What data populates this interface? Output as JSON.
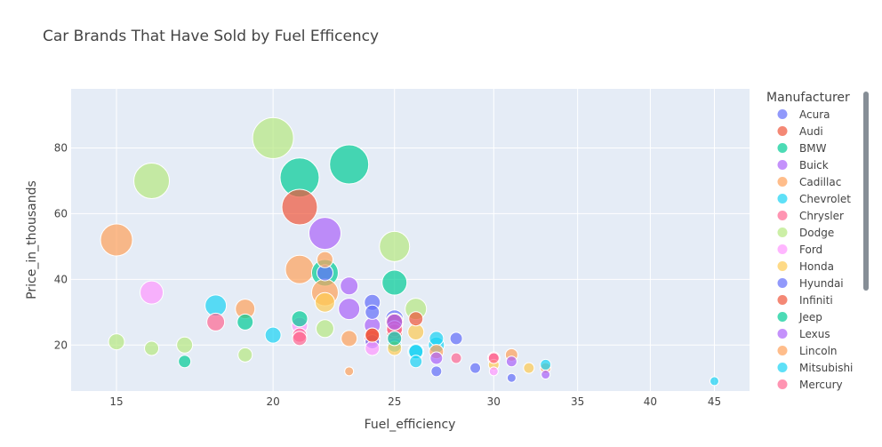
{
  "chart_data": {
    "type": "scatter",
    "title": "Car Brands That Have Sold by Fuel Efficency",
    "xlabel": "Fuel_efficiency",
    "ylabel": "Price_in_thousands",
    "x_scale": "log",
    "xlim": [
      13.8,
      48
    ],
    "ylim": [
      6,
      98
    ],
    "x_ticks": [
      15,
      20,
      25,
      30,
      35,
      40,
      45
    ],
    "y_ticks": [
      20,
      40,
      60,
      80
    ],
    "grid": true,
    "legend_title": "Manufacturer",
    "legend_placement": "right",
    "size_encoding": "relative bubble size",
    "series": [
      {
        "name": "Acura",
        "color": "#636efa",
        "points": [
          [
            24,
            21,
            8
          ],
          [
            25,
            28,
            10
          ],
          [
            24,
            33,
            9
          ],
          [
            22,
            42,
            9
          ]
        ]
      },
      {
        "name": "Audi",
        "color": "#ef553b",
        "points": [
          [
            25,
            24,
            9
          ],
          [
            24,
            23,
            8
          ],
          [
            21,
            62,
            20
          ],
          [
            26,
            28,
            8
          ]
        ]
      },
      {
        "name": "BMW",
        "color": "#00cc96",
        "points": [
          [
            25,
            39,
            14
          ],
          [
            23,
            75,
            22
          ],
          [
            21,
            71,
            22
          ],
          [
            22,
            42,
            15
          ]
        ]
      },
      {
        "name": "Buick",
        "color": "#ab63fa",
        "points": [
          [
            27,
            16,
            7
          ],
          [
            23,
            38,
            10
          ],
          [
            22,
            54,
            18
          ],
          [
            24,
            26,
            9
          ]
        ]
      },
      {
        "name": "Cadillac",
        "color": "#ffa15a",
        "points": [
          [
            15,
            52,
            18
          ],
          [
            22,
            46,
            9
          ],
          [
            21,
            43,
            16
          ],
          [
            23,
            12,
            5
          ],
          [
            22,
            36,
            15
          ]
        ]
      },
      {
        "name": "Chevrolet",
        "color": "#19d3f3",
        "points": [
          [
            18,
            32,
            12
          ],
          [
            26,
            18,
            8
          ],
          [
            26,
            15,
            7
          ],
          [
            25,
            20,
            8
          ],
          [
            27,
            22,
            8
          ]
        ]
      },
      {
        "name": "Chrysler",
        "color": "#ff6692",
        "points": [
          [
            21,
            23,
            8
          ],
          [
            24,
            22,
            9
          ],
          [
            25,
            25,
            9
          ],
          [
            30,
            16,
            7
          ]
        ]
      },
      {
        "name": "Dodge",
        "color": "#b6e880",
        "points": [
          [
            20,
            83,
            23
          ],
          [
            16,
            70,
            20
          ],
          [
            25,
            50,
            17
          ],
          [
            26,
            31,
            12
          ],
          [
            15,
            21,
            9
          ],
          [
            16,
            19,
            8
          ],
          [
            17,
            20,
            9
          ],
          [
            19,
            17,
            8
          ],
          [
            22,
            25,
            10
          ]
        ]
      },
      {
        "name": "Ford",
        "color": "#ff97ff",
        "points": [
          [
            16,
            36,
            13
          ],
          [
            21,
            26,
            9
          ],
          [
            24,
            19,
            8
          ],
          [
            30,
            12,
            5
          ],
          [
            25,
            22,
            8
          ]
        ]
      },
      {
        "name": "Honda",
        "color": "#fecb52",
        "points": [
          [
            30,
            14,
            6
          ],
          [
            32,
            13,
            6
          ],
          [
            25,
            19,
            8
          ],
          [
            26,
            24,
            9
          ],
          [
            22,
            33,
            11
          ]
        ]
      },
      {
        "name": "Hyundai",
        "color": "#636efa",
        "points": [
          [
            31,
            10,
            5
          ],
          [
            27,
            12,
            6
          ],
          [
            28,
            22,
            7
          ],
          [
            29,
            13,
            6
          ],
          [
            24,
            30,
            8
          ]
        ]
      },
      {
        "name": "Infiniti",
        "color": "#ef553b",
        "points": [
          [
            25,
            27,
            10
          ],
          [
            24,
            23,
            8
          ]
        ]
      },
      {
        "name": "Jeep",
        "color": "#00cc96",
        "points": [
          [
            17,
            15,
            7
          ],
          [
            19,
            27,
            9
          ],
          [
            25,
            22,
            8
          ],
          [
            21,
            28,
            9
          ]
        ]
      },
      {
        "name": "Lexus",
        "color": "#ab63fa",
        "points": [
          [
            23,
            31,
            12
          ],
          [
            31,
            15,
            6
          ],
          [
            33,
            11,
            5
          ],
          [
            25,
            27,
            9
          ]
        ]
      },
      {
        "name": "Lincoln",
        "color": "#ffa15a",
        "points": [
          [
            19,
            31,
            11
          ],
          [
            23,
            22,
            9
          ],
          [
            27,
            18,
            8
          ],
          [
            31,
            17,
            7
          ],
          [
            33,
            13,
            6
          ]
        ]
      },
      {
        "name": "Mitsubishi",
        "color": "#19d3f3",
        "points": [
          [
            45,
            9,
            5
          ],
          [
            20,
            23,
            9
          ],
          [
            26,
            18,
            9
          ],
          [
            33,
            14,
            6
          ],
          [
            27,
            20,
            9
          ]
        ]
      },
      {
        "name": "Mercury",
        "color": "#ff6692",
        "points": [
          [
            18,
            27,
            10
          ],
          [
            21,
            22,
            8
          ],
          [
            28,
            16,
            6
          ],
          [
            30,
            16,
            6
          ]
        ]
      }
    ]
  }
}
